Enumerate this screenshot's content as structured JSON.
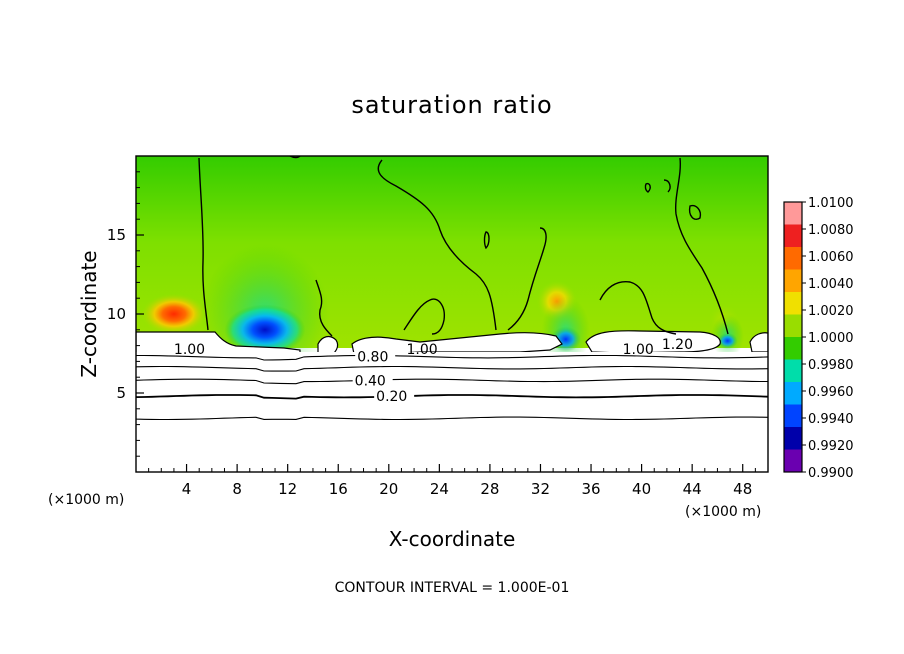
{
  "chart_data": {
    "type": "heatmap",
    "title": "saturation ratio",
    "xlabel": "X-coordinate",
    "ylabel": "Z-coordinate",
    "x_unit": "(×1000 m)",
    "x_range": [
      0,
      50
    ],
    "y_range": [
      0,
      20
    ],
    "x_ticks": [
      4,
      8,
      12,
      16,
      20,
      24,
      28,
      32,
      36,
      40,
      44,
      48
    ],
    "y_ticks": [
      5,
      10,
      15
    ],
    "colorbar": {
      "min": 0.99,
      "max": 1.01,
      "labels": [
        "1.0100",
        "1.0080",
        "1.0060",
        "1.0040",
        "1.0020",
        "1.0000",
        "0.9980",
        "0.9960",
        "0.9940",
        "0.9920",
        "0.9900"
      ],
      "colors": [
        "#ff9999",
        "#ee2020",
        "#ff6a00",
        "#ffa500",
        "#f0e000",
        "#99dd00",
        "#33cc00",
        "#00ddaa",
        "#00aaff",
        "#0044ff",
        "#0000aa",
        "#6a00b0"
      ]
    },
    "contour_lines": [
      {
        "level": 0.2,
        "z": 4.8,
        "label": "0.20",
        "label_x": 19.0
      },
      {
        "level": 0.4,
        "z": 5.8,
        "label": "0.40",
        "label_x": 17.3
      },
      {
        "level": 0.6,
        "z": 6.6,
        "label": "",
        "label_x": 0
      },
      {
        "level": 0.8,
        "z": 7.3,
        "label": "0.80",
        "label_x": 17.5
      },
      {
        "level": 0.1,
        "z": 3.4,
        "label": "",
        "label_x": 0
      }
    ],
    "extra_contour_labels": [
      {
        "text": "1.00",
        "x": 3.0,
        "z": 7.8
      },
      {
        "text": "1.00",
        "x": 21.4,
        "z": 7.8
      },
      {
        "text": "1.00",
        "x": 38.5,
        "z": 7.8
      },
      {
        "text": "1.20",
        "x": 41.6,
        "z": 8.1
      }
    ],
    "hot_spots": [
      {
        "x": 3.0,
        "z": 10.0,
        "value": 1.0075,
        "rx": 2.6,
        "rz": 1.3
      },
      {
        "x": 33.3,
        "z": 10.8,
        "value": 1.0035,
        "rx": 1.6,
        "rz": 1.3
      },
      {
        "x": 46.5,
        "z": 9.6,
        "value": 1.0005,
        "rx": 1.2,
        "rz": 1.0
      }
    ],
    "cold_spots": [
      {
        "x": 10.2,
        "z": 9.0,
        "value": 0.9925,
        "rx": 3.2,
        "rz": 1.6
      },
      {
        "x": 34.0,
        "z": 8.4,
        "value": 0.9935,
        "rx": 1.2,
        "rz": 0.8
      },
      {
        "x": 46.8,
        "z": 8.3,
        "value": 0.993,
        "rx": 0.8,
        "rz": 0.5
      }
    ],
    "footer": "CONTOUR INTERVAL = 1.000E-01"
  }
}
